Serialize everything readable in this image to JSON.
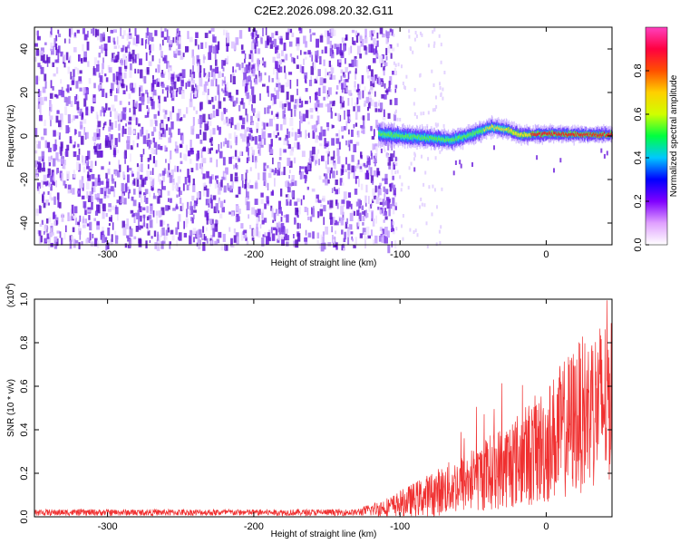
{
  "title": "C2E2.2026.098.20.32.G11",
  "colors": {
    "noise": "#6a1bdc",
    "signal_line": "#f03030",
    "axis": "#000000"
  },
  "chart_data": [
    {
      "type": "heatmap",
      "name": "spectrogram",
      "title": "C2E2.2026.098.20.32.G11",
      "xlabel": "Height of straight line (km)",
      "ylabel": "Frequency (Hz)",
      "xlim": [
        -350,
        45
      ],
      "ylim": [
        -50,
        50
      ],
      "x_ticks": [
        -300,
        -200,
        -100,
        0
      ],
      "x_tick_labels": [
        "-300",
        "-200",
        "-100",
        "0"
      ],
      "y_ticks": [
        -40,
        -20,
        0,
        20,
        40
      ],
      "y_tick_labels": [
        "-40",
        "-20",
        "0",
        "20",
        "40"
      ],
      "noise_region": [
        -350,
        -107
      ],
      "signal_start": -115,
      "signal_track": [
        {
          "x": -115,
          "freq": 1.0
        },
        {
          "x": -100,
          "freq": 0.0
        },
        {
          "x": -80,
          "freq": -1.0
        },
        {
          "x": -65,
          "freq": -2.0
        },
        {
          "x": -50,
          "freq": 1.0
        },
        {
          "x": -38,
          "freq": 4.0
        },
        {
          "x": -28,
          "freq": 3.0
        },
        {
          "x": -18,
          "freq": 0.5
        },
        {
          "x": 0,
          "freq": 1.0
        },
        {
          "x": 45,
          "freq": 0.5
        }
      ],
      "colorbar": {
        "label": "Normalized spectral amplitude",
        "range": [
          0,
          1
        ],
        "ticks": [
          0.0,
          0.2,
          0.4,
          0.6,
          0.8
        ],
        "tick_labels": [
          "0.0",
          "0.2",
          "0.4",
          "0.6",
          "0.8"
        ],
        "colors": [
          "#ffffff",
          "#e0a0ff",
          "#8000ff",
          "#0000ff",
          "#00c8ff",
          "#00ff40",
          "#d0ff00",
          "#ffd000",
          "#ff5000",
          "#ff0040",
          "#ff40c0"
        ]
      }
    },
    {
      "type": "line",
      "name": "snr",
      "xlabel": "Height of straight line (km)",
      "ylabel": "SNR (10 * v/v)",
      "y_multiplier": "(x10",
      "y_multiplier_exp": "4",
      "y_multiplier_close": ")",
      "xlim": [
        -350,
        45
      ],
      "ylim": [
        0,
        1.0
      ],
      "x_ticks": [
        -300,
        -200,
        -100,
        0
      ],
      "x_tick_labels": [
        "-300",
        "-200",
        "-100",
        "0"
      ],
      "y_ticks": [
        0.0,
        0.2,
        0.4,
        0.6,
        0.8,
        1.0
      ],
      "y_tick_labels": [
        "0.0",
        "0.2",
        "0.4",
        "0.6",
        "0.8",
        "1.0"
      ],
      "envelope": [
        {
          "x": -350,
          "mean": 0.02,
          "spread": 0.015
        },
        {
          "x": -130,
          "mean": 0.02,
          "spread": 0.015
        },
        {
          "x": -105,
          "mean": 0.05,
          "spread": 0.05
        },
        {
          "x": -80,
          "mean": 0.1,
          "spread": 0.1
        },
        {
          "x": -50,
          "mean": 0.17,
          "spread": 0.15
        },
        {
          "x": -20,
          "mean": 0.26,
          "spread": 0.22
        },
        {
          "x": 0,
          "mean": 0.33,
          "spread": 0.28
        },
        {
          "x": 20,
          "mean": 0.45,
          "spread": 0.35
        },
        {
          "x": 45,
          "mean": 0.55,
          "spread": 0.4
        }
      ]
    }
  ]
}
